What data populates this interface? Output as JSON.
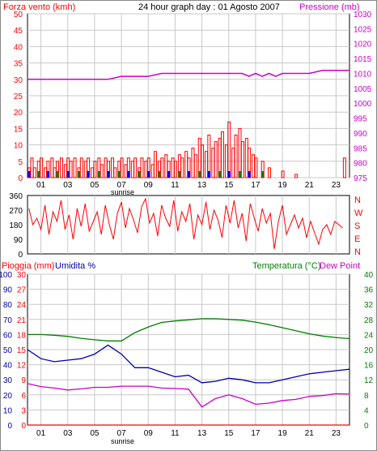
{
  "header": {
    "title": "24 hour graph day : 01 Agosto 2007",
    "left_label": "Forza vento (kmh)",
    "right_label": "Pressione (mb)"
  },
  "direction_labels": [
    "N",
    "W",
    "S",
    "E",
    "N"
  ],
  "bottom_labels": {
    "rain": "Pioggia (mm)",
    "humidity": "Umidita %",
    "temperature": "Temperatura (°C)",
    "dewpoint": "Dew Point"
  },
  "sunrise_label": "sunrise",
  "x_ticks": [
    "01",
    "03",
    "05",
    "07",
    "09",
    "11",
    "13",
    "15",
    "17",
    "19",
    "21",
    "23"
  ],
  "colors": {
    "wind": "#ff0000",
    "gust_blue": "#0000ff",
    "gust_green": "#008000",
    "pressure": "#cc00cc",
    "direction": "#ff0000",
    "temperature": "#008000",
    "dewpoint": "#cc00cc",
    "humidity": "#0000aa",
    "rain": "#ff0000",
    "grid": "#c8c8c8"
  },
  "chart_data": [
    {
      "type": "bar",
      "name": "wind",
      "title": "24 hour graph day : 01 Agosto 2007",
      "ylabel": "Forza vento (kmh)",
      "y2label": "Pressione (mb)",
      "ylim": [
        0,
        50
      ],
      "y2lim": [
        975,
        1030
      ],
      "yticks": [
        0,
        5,
        10,
        15,
        20,
        25,
        30,
        35,
        40,
        45,
        50
      ],
      "y2ticks": [
        975,
        980,
        985,
        990,
        995,
        1000,
        1005,
        1010,
        1015,
        1020,
        1025,
        1030
      ],
      "xlim": [
        0,
        24
      ],
      "grid": true,
      "series": [
        {
          "name": "wind",
          "x": [
            0.1,
            0.3,
            0.5,
            0.8,
            1.0,
            1.3,
            1.5,
            1.8,
            2.0,
            2.2,
            2.5,
            2.8,
            3.0,
            3.2,
            3.5,
            3.8,
            4.0,
            4.3,
            4.5,
            4.8,
            5.0,
            5.3,
            5.5,
            5.8,
            6.0,
            6.3,
            6.5,
            6.8,
            7.0,
            7.3,
            7.5,
            7.8,
            8.0,
            8.3,
            8.5,
            8.8,
            9.0,
            9.3,
            9.5,
            9.8,
            10.0,
            10.3,
            10.5,
            10.8,
            11.0,
            11.3,
            11.5,
            11.8,
            12.0,
            12.3,
            12.5,
            12.8,
            13.0,
            13.3,
            13.5,
            13.8,
            14.0,
            14.3,
            14.5,
            14.8,
            15.0,
            15.3,
            15.5,
            15.8,
            16.0,
            16.3,
            16.5,
            16.8,
            17.0,
            17.5,
            18.0,
            19.0,
            20.0,
            21.0,
            22.0,
            23.0,
            23.6
          ],
          "values": [
            3,
            6,
            3,
            5,
            6,
            3,
            5,
            6,
            3,
            5,
            6,
            4,
            6,
            5,
            6,
            3,
            6,
            5,
            6,
            3,
            5,
            6,
            4,
            6,
            5,
            6,
            3,
            5,
            6,
            4,
            6,
            5,
            6,
            3,
            6,
            5,
            6,
            4,
            8,
            5,
            6,
            7,
            5,
            6,
            5,
            7,
            6,
            8,
            6,
            9,
            7,
            12,
            10,
            8,
            13,
            9,
            11,
            12,
            14,
            10,
            17,
            9,
            13,
            15,
            11,
            12,
            9,
            7,
            6,
            5,
            3,
            2,
            1,
            0,
            0,
            0,
            6
          ]
        },
        {
          "name": "pressure",
          "x": [
            0,
            1,
            2,
            3,
            4,
            5,
            6,
            7,
            8,
            9,
            10,
            11,
            12,
            13,
            14,
            15,
            16,
            16.5,
            17,
            17.5,
            18,
            18.5,
            19,
            20,
            21,
            22,
            23,
            24
          ],
          "values": [
            1008,
            1008,
            1008,
            1008,
            1008,
            1008,
            1008,
            1009,
            1009,
            1009,
            1010,
            1010,
            1010,
            1010,
            1010,
            1010,
            1010,
            1009,
            1010,
            1009,
            1010,
            1009,
            1010,
            1010,
            1010,
            1011,
            1011,
            1011
          ]
        }
      ]
    },
    {
      "type": "line",
      "name": "direction",
      "ylim": [
        0,
        360
      ],
      "yticks": [
        0,
        90,
        180,
        270,
        360
      ],
      "xlim": [
        0,
        24
      ],
      "series": [
        {
          "name": "direction",
          "x": [
            0.1,
            0.4,
            0.7,
            1.0,
            1.3,
            1.6,
            1.9,
            2.2,
            2.5,
            2.8,
            3.1,
            3.4,
            3.7,
            4.0,
            4.3,
            4.6,
            4.9,
            5.2,
            5.5,
            5.8,
            6.1,
            6.4,
            6.7,
            7.0,
            7.3,
            7.6,
            7.9,
            8.2,
            8.5,
            8.8,
            9.1,
            9.4,
            9.7,
            10.0,
            10.3,
            10.6,
            10.9,
            11.2,
            11.5,
            11.8,
            12.1,
            12.4,
            12.7,
            13.0,
            13.3,
            13.6,
            13.9,
            14.2,
            14.5,
            14.8,
            15.1,
            15.4,
            15.7,
            16.0,
            16.3,
            16.6,
            16.9,
            17.2,
            17.5,
            17.8,
            18.1,
            18.4,
            18.7,
            19.0,
            19.3,
            19.6,
            19.9,
            20.2,
            20.5,
            20.8,
            21.1,
            21.4,
            21.7,
            22.0,
            22.3,
            22.6,
            22.9,
            23.2,
            23.5
          ],
          "values": [
            280,
            180,
            220,
            150,
            300,
            120,
            260,
            200,
            330,
            150,
            240,
            90,
            280,
            170,
            310,
            140,
            200,
            260,
            120,
            300,
            180,
            90,
            250,
            320,
            160,
            280,
            210,
            130,
            290,
            340,
            190,
            250,
            110,
            300,
            220,
            170,
            330,
            140,
            260,
            200,
            310,
            90,
            240,
            180,
            320,
            150,
            270,
            210,
            100,
            300,
            190,
            330,
            160,
            250,
            80,
            310,
            220,
            140,
            280,
            190,
            250,
            30,
            200,
            300,
            120,
            180,
            240,
            160,
            220,
            100,
            200,
            130,
            60,
            150,
            180,
            120,
            200,
            180,
            160
          ]
        }
      ]
    },
    {
      "type": "line",
      "name": "weather",
      "ylabel": "Pioggia (mm)",
      "y2label": "Temperatura (°C)",
      "ylim_rain": [
        0,
        30
      ],
      "yticks_rain": [
        0,
        3,
        6,
        9,
        12,
        15,
        18,
        21,
        24,
        27,
        30
      ],
      "ylim_humidity": [
        0,
        100
      ],
      "yticks_humidity": [
        0,
        10,
        20,
        30,
        40,
        50,
        60,
        70,
        80,
        90,
        100
      ],
      "ylim_temp": [
        0,
        40
      ],
      "yticks_temp": [
        0,
        4,
        8,
        12,
        16,
        20,
        24,
        28,
        32,
        36,
        40
      ],
      "xlim": [
        0,
        24
      ],
      "series": [
        {
          "name": "Temperatura (°C)",
          "x": [
            0,
            1,
            2,
            3,
            4,
            5,
            6,
            7,
            8,
            9,
            10,
            11,
            12,
            13,
            14,
            15,
            16,
            17,
            18,
            19,
            20,
            21,
            22,
            23,
            24
          ],
          "values": [
            24,
            24,
            23.8,
            23.5,
            23,
            22.6,
            22.3,
            22.3,
            24.5,
            26,
            27.2,
            27.6,
            27.9,
            28.2,
            28.2,
            28,
            27.8,
            27.3,
            26.6,
            25.8,
            25,
            24.2,
            23.6,
            23.2,
            22.9
          ]
        },
        {
          "name": "Dew Point",
          "x": [
            0,
            1,
            2,
            3,
            4,
            5,
            6,
            7,
            8,
            9,
            10,
            11,
            12,
            13,
            14,
            15,
            16,
            17,
            18,
            19,
            20,
            21,
            22,
            23,
            24
          ],
          "values": [
            11,
            10.2,
            9.8,
            9.3,
            9.6,
            10,
            10,
            10.3,
            10.3,
            10.3,
            9.8,
            9.7,
            9.5,
            4.8,
            7,
            8,
            7,
            5.5,
            5.8,
            6.5,
            6.8,
            7.6,
            7.8,
            8.3,
            8.2
          ]
        },
        {
          "name": "Umidita %",
          "x": [
            0,
            1,
            2,
            3,
            4,
            5,
            6,
            7,
            8,
            9,
            10,
            11,
            12,
            13,
            14,
            15,
            16,
            17,
            18,
            19,
            20,
            21,
            22,
            23,
            24
          ],
          "values": [
            50,
            44,
            42,
            43,
            44,
            47,
            53,
            47,
            38,
            38,
            35,
            32,
            33,
            28,
            29,
            31,
            30,
            28,
            28,
            30,
            32,
            34,
            35,
            36,
            37
          ]
        },
        {
          "name": "Pioggia (mm)",
          "x": [
            0,
            24
          ],
          "values": [
            0,
            0
          ]
        }
      ]
    }
  ]
}
